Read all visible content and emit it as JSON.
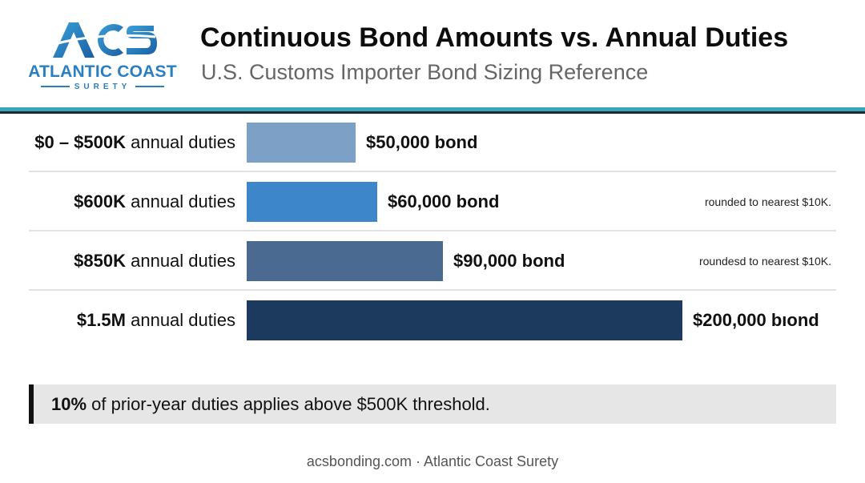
{
  "header": {
    "logo": {
      "mark": "ACS",
      "name": "ATLANTIC COAST",
      "sub": "SURETY",
      "color": "#2b7fc0"
    },
    "title": "Continuous Bond Amounts vs. Annual Duties",
    "subtitle": "U.S. Customs Importer Bond Sizing Reference"
  },
  "chart_data": {
    "type": "bar",
    "orientation": "horizontal",
    "categories": [
      {
        "bold": "$0 – $500K",
        "rest": " annual duties"
      },
      {
        "bold": "$600K",
        "rest": " annual duties"
      },
      {
        "bold": "$850K",
        "rest": " annual duties"
      },
      {
        "bold": "$1.5M",
        "rest": " annual duties"
      }
    ],
    "values": [
      50000,
      60000,
      90000,
      200000
    ],
    "value_labels": [
      "$50,000 bond",
      "$60,000 bond",
      "$90,000 bond",
      "$200,000 bıond"
    ],
    "notes": [
      "",
      "rounded to nearest $10K.",
      "roundesd to nearest $10K.",
      ""
    ],
    "bar_colors": [
      "#7da1c6",
      "#3d86c9",
      "#4a6a92",
      "#1b3a5e"
    ],
    "xlim": [
      0,
      200000
    ]
  },
  "callout": {
    "bold": "10%",
    "rest": " of prior-year duties applies above $500K threshold."
  },
  "footer": "acsbonding.com · Atlantic Coast Surety"
}
